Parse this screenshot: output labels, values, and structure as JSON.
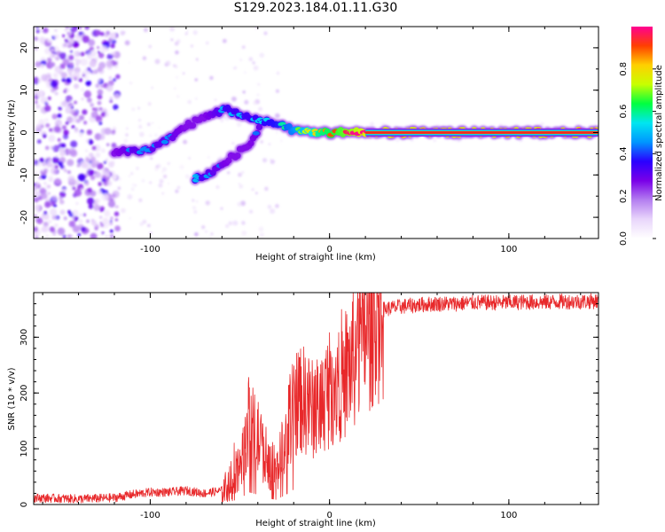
{
  "figure_title": "S129.2023.184.01.11.G30",
  "colors": {
    "snr_line": "#e8282a",
    "ridge_core": "#e8282a",
    "colormap": [
      "#ffffff",
      "#e9d6fb",
      "#b47ef0",
      "#7a00e8",
      "#2a00ff",
      "#0096ff",
      "#00e6f0",
      "#00ff40",
      "#c8ff00",
      "#ffd000",
      "#ff4000",
      "#ff0090"
    ]
  },
  "chart_data": [
    {
      "type": "heatmap",
      "xlabel": "Height of straight line (km)",
      "ylabel": "Frequency (Hz)",
      "xlim": [
        -165,
        150
      ],
      "ylim": [
        -25,
        25
      ],
      "xticks": [
        -100,
        0,
        100
      ],
      "yticks": [
        -20,
        -10,
        0,
        10,
        20
      ],
      "ytick_labels": [
        "-20",
        "-10",
        "0",
        "10",
        "20"
      ],
      "colorbar": {
        "label": "Normalized spectral amplitude",
        "range": [
          0,
          1
        ],
        "ticks": [
          0.0,
          0.2,
          0.4,
          0.6,
          0.8
        ],
        "tick_labels": [
          "0.0",
          "0.2",
          "0.4",
          "0.6",
          "0.8"
        ]
      },
      "ridge": [
        {
          "x": -120,
          "y": -4.5,
          "amp": 0.35
        },
        {
          "x": -110,
          "y": -4.5,
          "amp": 0.4
        },
        {
          "x": -100,
          "y": -4,
          "amp": 0.4
        },
        {
          "x": -90,
          "y": -1.5,
          "amp": 0.4
        },
        {
          "x": -80,
          "y": 1.5,
          "amp": 0.35
        },
        {
          "x": -70,
          "y": 3.5,
          "amp": 0.35
        },
        {
          "x": -58,
          "y": 5.5,
          "amp": 0.45
        },
        {
          "x": -45,
          "y": 3.5,
          "amp": 0.45
        },
        {
          "x": -30,
          "y": 2,
          "amp": 0.5
        },
        {
          "x": -20,
          "y": 0.5,
          "amp": 0.6
        },
        {
          "x": -5,
          "y": 0,
          "amp": 0.8
        },
        {
          "x": 20,
          "y": 0,
          "amp": 1.0
        },
        {
          "x": 150,
          "y": 0,
          "amp": 1.0
        }
      ],
      "branch": [
        {
          "x": -75,
          "y": -11,
          "amp": 0.45
        },
        {
          "x": -65,
          "y": -9,
          "amp": 0.4
        },
        {
          "x": -55,
          "y": -6,
          "amp": 0.35
        },
        {
          "x": -45,
          "y": -3,
          "amp": 0.35
        },
        {
          "x": -38,
          "y": 2,
          "amp": 0.4
        }
      ]
    },
    {
      "type": "line",
      "xlabel": "Height of straight line (km)",
      "ylabel": "SNR (10 * v/v)",
      "xlim": [
        -165,
        150
      ],
      "ylim": [
        0,
        380
      ],
      "xticks": [
        -100,
        0,
        100
      ],
      "yticks": [
        0,
        100,
        200,
        300
      ],
      "series": [
        {
          "x": [
            -165,
            -140,
            -120,
            -110,
            -100,
            -90,
            -80,
            -70,
            -60,
            -55,
            -50,
            -45,
            -40,
            -35,
            -30,
            -25,
            -20,
            -15,
            -10,
            -5,
            0,
            5,
            10,
            15,
            20,
            25,
            30,
            40,
            50,
            60,
            70,
            80,
            90,
            100,
            110,
            120,
            130,
            140,
            150
          ],
          "values": [
            12,
            10,
            12,
            18,
            22,
            22,
            25,
            20,
            25,
            40,
            70,
            150,
            120,
            80,
            60,
            110,
            180,
            190,
            170,
            180,
            210,
            230,
            240,
            270,
            310,
            340,
            350,
            355,
            358,
            360,
            360,
            362,
            362,
            362,
            363,
            363,
            364,
            364,
            365
          ]
        }
      ]
    }
  ]
}
